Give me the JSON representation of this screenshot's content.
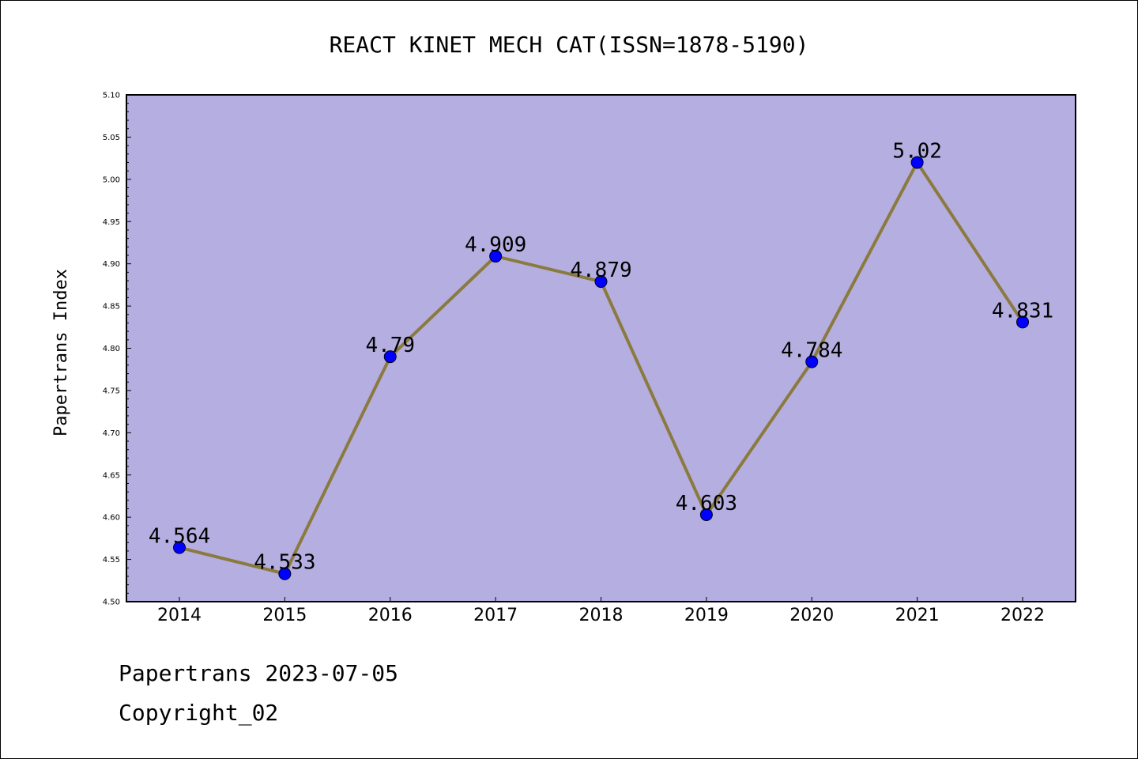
{
  "chart_data": {
    "type": "line",
    "title": "REACT KINET MECH CAT(ISSN=1878-5190)",
    "xlabel": "",
    "ylabel": "Papertrans Index",
    "categories": [
      "2014",
      "2015",
      "2016",
      "2017",
      "2018",
      "2019",
      "2020",
      "2021",
      "2022"
    ],
    "values": [
      4.564,
      4.533,
      4.79,
      4.909,
      4.879,
      4.603,
      4.784,
      5.02,
      4.831
    ],
    "data_labels": [
      "4.564",
      "4.533",
      "4.79",
      "4.909",
      "4.879",
      "4.603",
      "4.784",
      "5.02",
      "4.831"
    ],
    "ylim": [
      4.5,
      5.1
    ],
    "yticks": [
      "4.50",
      "4.55",
      "4.60",
      "4.65",
      "4.70",
      "4.75",
      "4.80",
      "4.85",
      "4.90",
      "4.95",
      "5.00",
      "5.05",
      "5.10"
    ],
    "grid": false,
    "colors": {
      "plot_background": "#b4aee1",
      "line": "#8b7a3e",
      "marker": "#0000ff"
    }
  },
  "footer": {
    "date_line": "Papertrans 2023-07-05",
    "copyright_line": "Copyright_02"
  }
}
